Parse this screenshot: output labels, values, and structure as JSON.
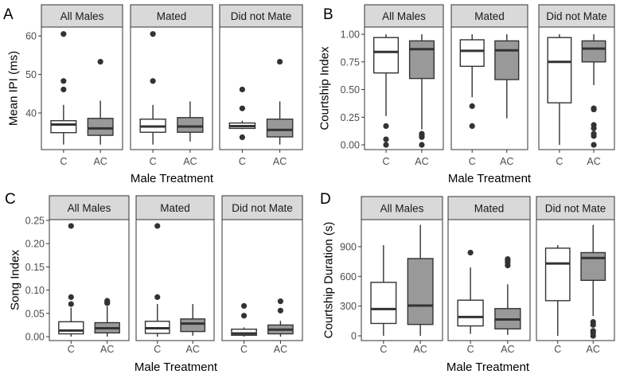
{
  "chart_data": [
    {
      "type": "boxplot",
      "panel_letter": "A",
      "ylabel": "Mean IPI (ms)",
      "xlabel": "Male Treatment",
      "ylim": [
        30.5,
        62.3
      ],
      "yticks": [
        40,
        50,
        60
      ],
      "tick_labels": [
        "40",
        "50",
        "60"
      ],
      "categories": [
        "C",
        "AC"
      ],
      "fill_colors": {
        "C": "#ffffff",
        "AC": "#999999"
      },
      "facets": [
        {
          "label": "All Males",
          "boxes": [
            {
              "group": "C",
              "lower": 31.8,
              "q1": 34.9,
              "median": 37.0,
              "q3": 38.0,
              "upper": 42.1,
              "outliers": [
                60.5,
                48.3,
                46.1
              ]
            },
            {
              "group": "AC",
              "lower": 31.8,
              "q1": 34.2,
              "median": 36.0,
              "q3": 38.6,
              "upper": 43.2,
              "outliers": [
                53.3
              ]
            }
          ]
        },
        {
          "label": "Mated",
          "boxes": [
            {
              "group": "C",
              "lower": 31.8,
              "q1": 35.0,
              "median": 36.5,
              "q3": 38.4,
              "upper": 42.1,
              "outliers": [
                60.5,
                48.3
              ]
            },
            {
              "group": "AC",
              "lower": 32.6,
              "q1": 35.0,
              "median": 36.5,
              "q3": 38.8,
              "upper": 43.0,
              "outliers": []
            }
          ]
        },
        {
          "label": "Did not Mate",
          "boxes": [
            {
              "group": "C",
              "lower": 35.8,
              "q1": 36.0,
              "median": 36.6,
              "q3": 37.4,
              "upper": 38.0,
              "outliers": [
                33.7,
                41.2,
                46.1
              ]
            },
            {
              "group": "AC",
              "lower": 31.8,
              "q1": 33.8,
              "median": 35.6,
              "q3": 38.4,
              "upper": 43.0,
              "outliers": [
                53.3
              ]
            }
          ]
        }
      ]
    },
    {
      "type": "boxplot",
      "panel_letter": "B",
      "ylabel": "Courtship Index",
      "xlabel": "Male Treatment",
      "ylim": [
        -0.043,
        1.065
      ],
      "yticks": [
        0,
        0.25,
        0.5,
        0.75,
        1.0
      ],
      "tick_labels": [
        "0.00",
        "0.25",
        "0.50",
        "0.75",
        "1.00"
      ],
      "categories": [
        "C",
        "AC"
      ],
      "fill_colors": {
        "C": "#ffffff",
        "AC": "#999999"
      },
      "facets": [
        {
          "label": "All Males",
          "boxes": [
            {
              "group": "C",
              "lower": 0.26,
              "q1": 0.65,
              "median": 0.84,
              "q3": 0.97,
              "upper": 1.0,
              "outliers": [
                0.17,
                0.05,
                0.0
              ]
            },
            {
              "group": "AC",
              "lower": 0.14,
              "q1": 0.6,
              "median": 0.865,
              "q3": 0.94,
              "upper": 1.0,
              "outliers": [
                0.1,
                0.08,
                0.07,
                0.0
              ]
            }
          ]
        },
        {
          "label": "Mated",
          "boxes": [
            {
              "group": "C",
              "lower": 0.43,
              "q1": 0.71,
              "median": 0.85,
              "q3": 0.95,
              "upper": 1.0,
              "outliers": [
                0.35,
                0.17
              ]
            },
            {
              "group": "AC",
              "lower": 0.24,
              "q1": 0.59,
              "median": 0.855,
              "q3": 0.94,
              "upper": 1.0,
              "outliers": []
            }
          ]
        },
        {
          "label": "Did not Mate",
          "boxes": [
            {
              "group": "C",
              "lower": 0.0,
              "q1": 0.38,
              "median": 0.75,
              "q3": 0.97,
              "upper": 1.0,
              "outliers": []
            },
            {
              "group": "AC",
              "lower": 0.54,
              "q1": 0.75,
              "median": 0.87,
              "q3": 0.94,
              "upper": 1.0,
              "outliers": [
                0.33,
                0.32,
                0.18,
                0.15,
                0.1,
                0.08,
                0.0
              ]
            }
          ]
        }
      ]
    },
    {
      "type": "boxplot",
      "panel_letter": "C",
      "ylabel": "Song Index",
      "xlabel": "Male Treatment",
      "ylim": [
        -0.0085,
        0.2516
      ],
      "yticks": [
        0,
        0.05,
        0.1,
        0.15,
        0.2,
        0.25
      ],
      "tick_labels": [
        "0.00",
        "0.05",
        "0.10",
        "0.15",
        "0.20",
        "0.25"
      ],
      "categories": [
        "C",
        "AC"
      ],
      "fill_colors": {
        "C": "#ffffff",
        "AC": "#999999"
      },
      "facets": [
        {
          "label": "All Males",
          "boxes": [
            {
              "group": "C",
              "lower": 0.0,
              "q1": 0.006,
              "median": 0.013,
              "q3": 0.032,
              "upper": 0.062,
              "outliers": [
                0.238,
                0.085,
                0.07
              ]
            },
            {
              "group": "AC",
              "lower": 0.0,
              "q1": 0.008,
              "median": 0.018,
              "q3": 0.03,
              "upper": 0.065,
              "outliers": [
                0.077,
                0.074,
                0.072
              ]
            }
          ]
        },
        {
          "label": "Mated",
          "boxes": [
            {
              "group": "C",
              "lower": 0.0,
              "q1": 0.007,
              "median": 0.018,
              "q3": 0.033,
              "upper": 0.07,
              "outliers": [
                0.238,
                0.085
              ]
            },
            {
              "group": "AC",
              "lower": 0.002,
              "q1": 0.011,
              "median": 0.028,
              "q3": 0.038,
              "upper": 0.07,
              "outliers": []
            }
          ]
        },
        {
          "label": "Did not Mate",
          "boxes": [
            {
              "group": "C",
              "lower": 0.0,
              "q1": 0.003,
              "median": 0.007,
              "q3": 0.016,
              "upper": 0.02,
              "outliers": [
                0.066,
                0.045
              ]
            },
            {
              "group": "AC",
              "lower": 0.0,
              "q1": 0.006,
              "median": 0.015,
              "q3": 0.025,
              "upper": 0.034,
              "outliers": [
                0.076,
                0.056
              ]
            }
          ]
        }
      ]
    },
    {
      "type": "boxplot",
      "panel_letter": "D",
      "ylabel": "Courtship Duration (s)",
      "xlabel": "Male Treatment",
      "ylim": [
        -48,
        1173
      ],
      "yticks": [
        0,
        300,
        600,
        900
      ],
      "tick_labels": [
        "0",
        "300",
        "600",
        "900"
      ],
      "categories": [
        "C",
        "AC"
      ],
      "fill_colors": {
        "C": "#ffffff",
        "AC": "#999999"
      },
      "facets": [
        {
          "label": "All Males",
          "boxes": [
            {
              "group": "C",
              "lower": 0,
              "q1": 125,
              "median": 270,
              "q3": 540,
              "upper": 915,
              "outliers": []
            },
            {
              "group": "AC",
              "lower": 0,
              "q1": 115,
              "median": 305,
              "q3": 780,
              "upper": 1120,
              "outliers": []
            }
          ]
        },
        {
          "label": "Mated",
          "boxes": [
            {
              "group": "C",
              "lower": 20,
              "q1": 100,
              "median": 190,
              "q3": 360,
              "upper": 690,
              "outliers": [
                840
              ]
            },
            {
              "group": "AC",
              "lower": 10,
              "q1": 70,
              "median": 165,
              "q3": 275,
              "upper": 520,
              "outliers": [
                775,
                760,
                740,
                710
              ]
            }
          ]
        },
        {
          "label": "Did not Mate",
          "boxes": [
            {
              "group": "C",
              "lower": 0,
              "q1": 355,
              "median": 730,
              "q3": 885,
              "upper": 915,
              "outliers": []
            },
            {
              "group": "AC",
              "lower": 200,
              "q1": 560,
              "median": 785,
              "q3": 840,
              "upper": 1120,
              "outliers": [
                140,
                110,
                50,
                30,
                0
              ]
            }
          ]
        }
      ]
    }
  ]
}
